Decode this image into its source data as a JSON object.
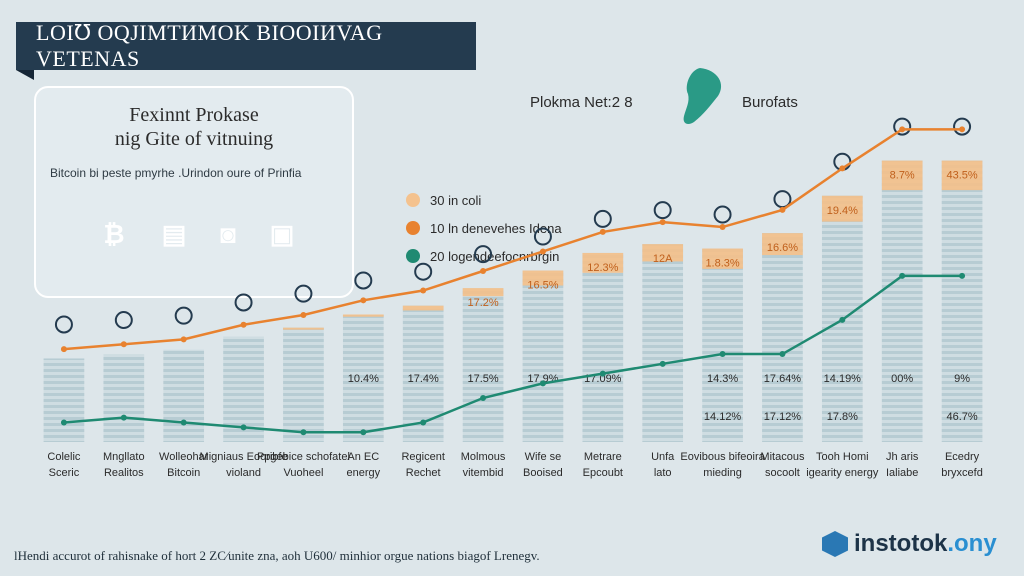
{
  "header": {
    "title": "LOI℧ OQJIMTИMOK BIOOIИVAG VETENAS",
    "network_label": "Plokma Net:2 8",
    "burofats_label": "Burofats"
  },
  "card": {
    "title_line1": "Fexinnt Prokase",
    "title_line2": "nig Gite of vitnuing",
    "subtitle": "Bitcoin bi peste pmyrhe .Urindon oure of Prinfia",
    "circles": [
      {
        "icon": "bitcoin-icon",
        "glyph": "₿",
        "color": "#e0823a"
      },
      {
        "icon": "document-icon",
        "glyph": "▤",
        "color": "#a9672e"
      },
      {
        "icon": "chip-icon",
        "glyph": "◙",
        "color": "#243b4f"
      },
      {
        "icon": "screen-icon",
        "glyph": "▣",
        "color": "#1f8a7b"
      }
    ]
  },
  "legend": [
    {
      "label": "30 in coli",
      "color": "#f4c28e"
    },
    {
      "label": "10 ln denevehes Idena",
      "color": "#e8822f"
    },
    {
      "label": "20 logendeefocnrbrgin",
      "color": "#1f8a72"
    }
  ],
  "footnote": "lHendi accurot of rahisnake of hort 2 ZC⁄unite zna, aoh U600/ minhior orgue nations biagof Lrenegv.",
  "brand": {
    "name_part1": "instotok",
    "name_part2": ".ony"
  },
  "colors": {
    "bar": "#b7ccd3",
    "bar_stripe": "#cfdde2",
    "bar_top": "#f4c08a",
    "orange_line": "#e8822f",
    "green_line": "#1f8a72"
  },
  "chart_data": {
    "type": "bar",
    "title": "",
    "categories": [
      "Colelic Sceric",
      "Mngllato Realitos",
      "Wolleohar Bitcoin",
      "Migniaus Eooribfe violand",
      "Ppgebice schofatel Vuoheel",
      "An EC energy",
      "Regicent Rechet",
      "Molmous vitembid",
      "Wife se Booised",
      "Metrare Epcoubt",
      "Unfa lato",
      "Eovibous bifeoira mieding",
      "Mitacous socoolt",
      "Tooh Homi igearity energy",
      "Jh aris Ialiabe",
      "Ecedry bryxcefd"
    ],
    "series": [
      {
        "values": [
          3,
          4,
          4,
          5,
          6,
          7,
          9,
          9,
          10,
          10,
          11,
          12,
          13,
          15,
          17,
          17
        ]
      },
      {
        "values": [
          1,
          1,
          1,
          1,
          1,
          1,
          2,
          3,
          5,
          6,
          5,
          6,
          6,
          6,
          6,
          6
        ]
      }
    ],
    "lines": [
      {
        "values": [
          38,
          40,
          42,
          48,
          52,
          58,
          62,
          70,
          78,
          86,
          90,
          88,
          95,
          112,
          128,
          128
        ]
      },
      {
        "values": [
          8,
          10,
          8,
          6,
          4,
          4,
          8,
          18,
          24,
          28,
          32,
          36,
          36,
          50,
          68,
          68
        ]
      }
    ],
    "bar_labels": [
      "",
      "",
      "",
      "",
      "",
      "",
      "",
      "17.2%",
      "16.5%",
      "12.3%",
      "12A",
      "1.8.3%",
      "16.6%",
      "19.4%",
      "8.7%",
      "43.5%"
    ],
    "lower_labels": [
      "",
      "",
      "",
      "",
      "",
      "10.4%",
      "17.4%",
      "17.5%",
      "17.9%",
      "17.09%",
      "",
      "14.3%",
      "17.64%",
      "14.19%",
      "00%",
      "9%"
    ],
    "mid_labels": [
      "",
      "",
      "",
      "",
      "",
      "",
      "",
      "",
      "",
      "",
      "",
      "14.12%",
      "17.12%",
      "17.8%",
      "",
      "46.7%"
    ],
    "ylim": [
      0,
      140
    ]
  }
}
